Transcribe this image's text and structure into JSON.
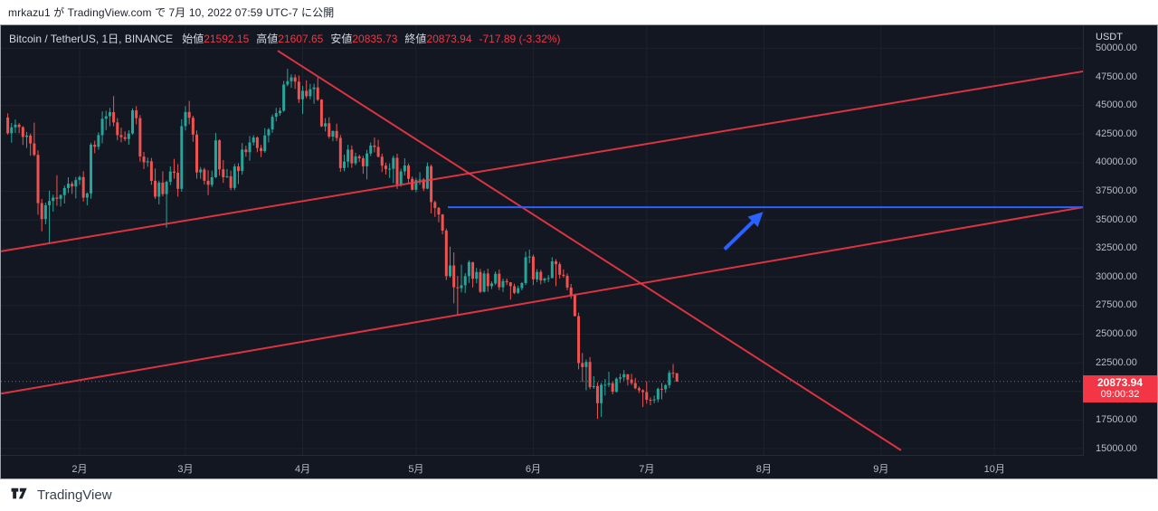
{
  "pub_bar": {
    "text": "mrkazu1 が TradingView.com で 7月 10, 2022 07:59 UTC-7 に公開"
  },
  "legend": {
    "title": "Bitcoin / TetherUS, 1日, BINANCE",
    "open_label": "始値",
    "open": "21592.15",
    "high_label": "高値",
    "high": "21607.65",
    "low_label": "安値",
    "low": "20835.73",
    "close_label": "終値",
    "close": "20873.94",
    "change": "-717.89 (-3.32%)"
  },
  "price_axis": {
    "unit": "USDT",
    "ticks": [
      "50000.00",
      "47500.00",
      "45000.00",
      "42500.00",
      "40000.00",
      "37500.00",
      "35000.00",
      "32500.00",
      "30000.00",
      "27500.00",
      "25000.00",
      "22500.00",
      "20000.00",
      "17500.00",
      "15000.00"
    ]
  },
  "time_axis": {
    "ticks": [
      {
        "label": "2月",
        "day": 19
      },
      {
        "label": "3月",
        "day": 47
      },
      {
        "label": "4月",
        "day": 78
      },
      {
        "label": "5月",
        "day": 108
      },
      {
        "label": "6月",
        "day": 139
      },
      {
        "label": "7月",
        "day": 169
      },
      {
        "label": "8月",
        "day": 200
      },
      {
        "label": "9月",
        "day": 231
      },
      {
        "label": "10月",
        "day": 261
      }
    ]
  },
  "badge": {
    "price": "20873.94",
    "countdown": "09:00:32"
  },
  "footer": {
    "brand": "TradingView"
  },
  "colors": {
    "up": "#26a69a",
    "down": "#ef5350",
    "line_red": "#f23645",
    "line_blue": "#2962ff",
    "bg": "#131722",
    "grid": "#1e222d",
    "axis_text": "#b8bcc7"
  },
  "chart_data": {
    "type": "candlestick",
    "title": "Bitcoin / TetherUS",
    "interval": "1日",
    "exchange": "BINANCE",
    "unit": "USDT",
    "start_date": "2022-01-13",
    "last_price": 20873.94,
    "price_range_labeled": [
      15000,
      50000
    ],
    "grid": true,
    "ohlc": [
      [
        43950,
        44320,
        42450,
        42570
      ],
      [
        42570,
        43470,
        41750,
        43090
      ],
      [
        43090,
        43770,
        42600,
        43320
      ],
      [
        43320,
        43470,
        42580,
        43110
      ],
      [
        43110,
        43190,
        41550,
        42250
      ],
      [
        42250,
        42690,
        41290,
        42370
      ],
      [
        42370,
        42550,
        40610,
        41680
      ],
      [
        41680,
        43500,
        40570,
        40680
      ],
      [
        40680,
        41080,
        35440,
        36460
      ],
      [
        36460,
        36830,
        34000,
        35070
      ],
      [
        35070,
        36500,
        34610,
        36280
      ],
      [
        36280,
        37550,
        32950,
        36650
      ],
      [
        36650,
        37200,
        35710,
        36950
      ],
      [
        36950,
        38900,
        36230,
        36840
      ],
      [
        36840,
        37230,
        36160,
        37160
      ],
      [
        37160,
        37990,
        36430,
        37780
      ],
      [
        37780,
        38720,
        37350,
        38160
      ],
      [
        38160,
        38360,
        37270,
        37920
      ],
      [
        37920,
        38750,
        36870,
        38480
      ],
      [
        38480,
        38870,
        38060,
        38740
      ],
      [
        38740,
        39260,
        36590,
        36940
      ],
      [
        36940,
        37390,
        36270,
        37310
      ],
      [
        37310,
        41740,
        36850,
        41570
      ],
      [
        41570,
        41920,
        40830,
        41390
      ],
      [
        41390,
        42650,
        41130,
        42410
      ],
      [
        42410,
        44480,
        41690,
        43840
      ],
      [
        43840,
        44540,
        42850,
        44060
      ],
      [
        44060,
        44790,
        43190,
        44420
      ],
      [
        44420,
        45820,
        43180,
        43520
      ],
      [
        43520,
        43900,
        41950,
        42410
      ],
      [
        42410,
        43060,
        41780,
        42230
      ],
      [
        42230,
        42740,
        41880,
        42070
      ],
      [
        42070,
        42840,
        41570,
        42550
      ],
      [
        42550,
        44750,
        42450,
        44570
      ],
      [
        44570,
        44940,
        43360,
        43890
      ],
      [
        43890,
        44160,
        40090,
        40540
      ],
      [
        40540,
        40940,
        39450,
        40030
      ],
      [
        40030,
        40440,
        39640,
        40120
      ],
      [
        40120,
        40420,
        38060,
        38410
      ],
      [
        38410,
        39490,
        36830,
        37020
      ],
      [
        37020,
        38430,
        36350,
        38260
      ],
      [
        38260,
        39240,
        37050,
        37250
      ],
      [
        37250,
        38440,
        34300,
        38330
      ],
      [
        38330,
        39680,
        38030,
        39230
      ],
      [
        39230,
        40330,
        38590,
        39120
      ],
      [
        39120,
        39870,
        37020,
        37710
      ],
      [
        37710,
        43800,
        37460,
        43190
      ],
      [
        43190,
        44950,
        42810,
        44430
      ],
      [
        44430,
        45400,
        43360,
        43920
      ],
      [
        43920,
        44100,
        41830,
        42450
      ],
      [
        42450,
        42810,
        38600,
        39150
      ],
      [
        39150,
        39620,
        38590,
        39400
      ],
      [
        39400,
        39550,
        38090,
        38420
      ],
      [
        38420,
        39340,
        37160,
        38060
      ],
      [
        38060,
        39300,
        37870,
        38730
      ],
      [
        38730,
        42600,
        38660,
        41950
      ],
      [
        41950,
        42040,
        38870,
        39420
      ],
      [
        39420,
        40230,
        38230,
        38730
      ],
      [
        38730,
        39450,
        38660,
        38810
      ],
      [
        38810,
        39310,
        37590,
        37790
      ],
      [
        37790,
        39890,
        37600,
        39670
      ],
      [
        39670,
        39950,
        38130,
        39280
      ],
      [
        39280,
        41720,
        38950,
        41140
      ],
      [
        41140,
        41480,
        40520,
        40920
      ],
      [
        40920,
        42330,
        40170,
        41770
      ],
      [
        41770,
        42400,
        41500,
        42200
      ],
      [
        42200,
        42300,
        40910,
        41280
      ],
      [
        41280,
        41550,
        40480,
        41010
      ],
      [
        41010,
        43020,
        40870,
        42380
      ],
      [
        42380,
        43040,
        41770,
        42900
      ],
      [
        42900,
        44220,
        42610,
        44010
      ],
      [
        44010,
        44790,
        43610,
        44330
      ],
      [
        44330,
        44820,
        44100,
        44540
      ],
      [
        44540,
        47150,
        44450,
        46830
      ],
      [
        46830,
        48200,
        46680,
        47120
      ],
      [
        47120,
        47720,
        46550,
        47450
      ],
      [
        47450,
        47700,
        46450,
        47080
      ],
      [
        47080,
        47620,
        45220,
        45540
      ],
      [
        45540,
        46720,
        44250,
        46280
      ],
      [
        46280,
        47200,
        45620,
        45810
      ],
      [
        45810,
        46890,
        45530,
        46420
      ],
      [
        46420,
        46900,
        45150,
        46580
      ],
      [
        46580,
        47450,
        45400,
        45510
      ],
      [
        45510,
        45560,
        43120,
        43170
      ],
      [
        43170,
        43900,
        42730,
        43440
      ],
      [
        43440,
        43970,
        42110,
        42280
      ],
      [
        42280,
        42800,
        41870,
        42770
      ],
      [
        42770,
        43410,
        41880,
        42160
      ],
      [
        42160,
        42420,
        39200,
        39530
      ],
      [
        39530,
        40700,
        39250,
        40090
      ],
      [
        40090,
        41560,
        39560,
        41140
      ],
      [
        41140,
        41500,
        39550,
        39940
      ],
      [
        39940,
        40870,
        39770,
        40550
      ],
      [
        40550,
        40700,
        40070,
        40380
      ],
      [
        40380,
        40590,
        39030,
        39680
      ],
      [
        39680,
        41120,
        38540,
        40800
      ],
      [
        40800,
        41760,
        40570,
        41500
      ],
      [
        41500,
        42200,
        40900,
        41370
      ],
      [
        41370,
        42000,
        40450,
        40520
      ],
      [
        40520,
        40790,
        39180,
        39740
      ],
      [
        39740,
        39990,
        38960,
        39440
      ],
      [
        39440,
        39940,
        38660,
        39470
      ],
      [
        39470,
        40620,
        38210,
        40420
      ],
      [
        40420,
        40780,
        37700,
        38110
      ],
      [
        38110,
        39470,
        37890,
        39240
      ],
      [
        39240,
        40380,
        38890,
        39750
      ],
      [
        39750,
        39930,
        38180,
        38590
      ],
      [
        38590,
        38790,
        37580,
        37630
      ],
      [
        37630,
        38680,
        37400,
        38470
      ],
      [
        38470,
        39170,
        38060,
        38530
      ],
      [
        38530,
        38650,
        37520,
        37730
      ],
      [
        37730,
        40020,
        37680,
        39690
      ],
      [
        39690,
        39840,
        35570,
        36550
      ],
      [
        36550,
        36680,
        35260,
        36040
      ],
      [
        36040,
        36130,
        34780,
        35470
      ],
      [
        35470,
        35510,
        33730,
        34060
      ],
      [
        34060,
        34240,
        29730,
        30080
      ],
      [
        30080,
        32660,
        29940,
        31010
      ],
      [
        31010,
        32160,
        27700,
        29100
      ],
      [
        29100,
        30100,
        26700,
        29030
      ],
      [
        29030,
        31080,
        28660,
        29280
      ],
      [
        29280,
        30340,
        28590,
        30080
      ],
      [
        30080,
        31460,
        29480,
        31300
      ],
      [
        31300,
        31330,
        29090,
        29850
      ],
      [
        29850,
        30790,
        29450,
        30440
      ],
      [
        30440,
        30710,
        28600,
        28710
      ],
      [
        28710,
        30550,
        28650,
        30310
      ],
      [
        30310,
        30730,
        28720,
        29200
      ],
      [
        29200,
        29620,
        28950,
        29440
      ],
      [
        29440,
        30490,
        29290,
        30290
      ],
      [
        30290,
        30660,
        28860,
        29110
      ],
      [
        29110,
        29870,
        28690,
        29650
      ],
      [
        29650,
        29870,
        29290,
        29540
      ],
      [
        29540,
        29560,
        28020,
        29200
      ],
      [
        29200,
        29420,
        28510,
        28620
      ],
      [
        28620,
        29250,
        28520,
        29030
      ],
      [
        29030,
        29560,
        28840,
        29470
      ],
      [
        29470,
        32220,
        29300,
        31730
      ],
      [
        31730,
        32400,
        31210,
        31790
      ],
      [
        31790,
        31960,
        29300,
        29800
      ],
      [
        29800,
        30690,
        29550,
        30450
      ],
      [
        30450,
        30630,
        29360,
        29700
      ],
      [
        29700,
        29950,
        29480,
        29860
      ],
      [
        29860,
        30170,
        29560,
        29910
      ],
      [
        29910,
        31730,
        29890,
        31370
      ],
      [
        31370,
        31560,
        29200,
        31120
      ],
      [
        31120,
        31310,
        29870,
        30200
      ],
      [
        30200,
        30670,
        29940,
        30110
      ],
      [
        30110,
        30310,
        28850,
        29080
      ],
      [
        29080,
        29400,
        28100,
        28400
      ],
      [
        28400,
        28540,
        26560,
        26580
      ],
      [
        26580,
        26890,
        21930,
        22480
      ],
      [
        22480,
        23360,
        20820,
        22130
      ],
      [
        22130,
        22790,
        20100,
        22570
      ],
      [
        22570,
        23000,
        20200,
        20380
      ],
      [
        20380,
        21330,
        20220,
        20470
      ],
      [
        20470,
        20790,
        17600,
        18970
      ],
      [
        18970,
        20750,
        17770,
        20570
      ],
      [
        20570,
        21080,
        19640,
        20590
      ],
      [
        20590,
        21720,
        20370,
        20710
      ],
      [
        20710,
        20880,
        19750,
        19970
      ],
      [
        19970,
        21230,
        19890,
        21110
      ],
      [
        21110,
        21550,
        20740,
        21230
      ],
      [
        21230,
        21870,
        20930,
        21500
      ],
      [
        21500,
        21520,
        20510,
        21030
      ],
      [
        21030,
        21530,
        20570,
        20730
      ],
      [
        20730,
        21180,
        20180,
        20280
      ],
      [
        20280,
        20430,
        19870,
        20100
      ],
      [
        20100,
        20190,
        18630,
        19940
      ],
      [
        19940,
        20880,
        18930,
        19270
      ],
      [
        19270,
        19470,
        18790,
        19240
      ],
      [
        19240,
        19640,
        18970,
        19300
      ],
      [
        19300,
        20330,
        19050,
        20230
      ],
      [
        20230,
        20730,
        19310,
        20190
      ],
      [
        20190,
        20650,
        19870,
        20550
      ],
      [
        20550,
        21840,
        20290,
        21630
      ],
      [
        21630,
        22400,
        21190,
        21590
      ],
      [
        21592.15,
        21607.65,
        20835.73,
        20873.94
      ]
    ],
    "drawings": {
      "trend_lines": [
        {
          "name": "ascending-channel-upper",
          "from": {
            "day": -1.8,
            "price": 32250
          },
          "to": {
            "day": 284.6,
            "price": 47990
          }
        },
        {
          "name": "ascending-channel-lower",
          "from": {
            "day": -1.8,
            "price": 19800
          },
          "to": {
            "day": 284.6,
            "price": 36110
          }
        },
        {
          "name": "descending-resistance",
          "from": {
            "day": 71.4,
            "price": 49790
          },
          "to": {
            "day": 236.3,
            "price": 14850
          }
        }
      ],
      "horizontal_line": {
        "price": 36100,
        "from_day": 116.4,
        "to_day": 284.6
      },
      "arrow": {
        "from": {
          "day": 189.6,
          "price": 32430
        },
        "to": {
          "day": 198.7,
          "price": 35350
        }
      },
      "last_price_line": {
        "price": 20873.94
      }
    }
  }
}
